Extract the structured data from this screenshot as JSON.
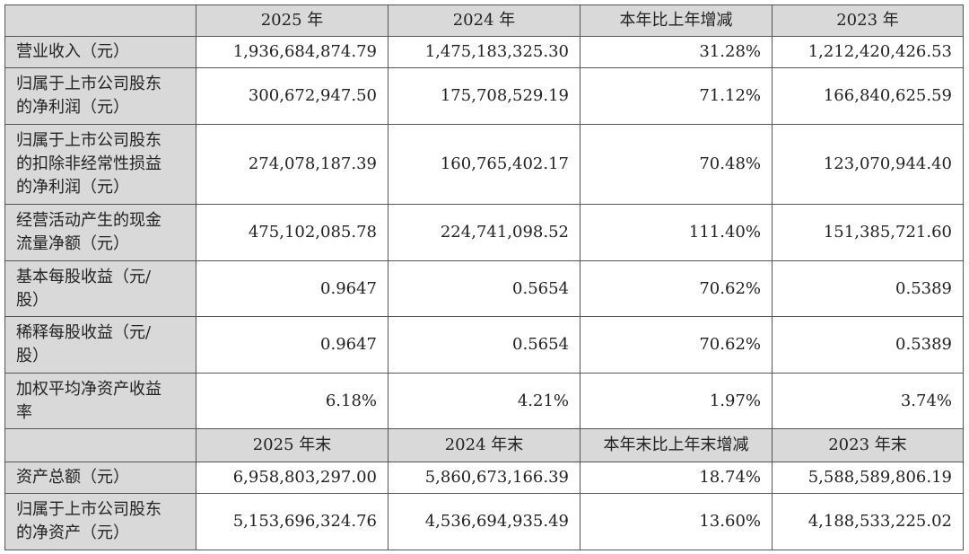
{
  "header1": [
    "",
    "2025 年",
    "2024 年",
    "本年比上年增减",
    "2023 年"
  ],
  "rows1": [
    {
      "label": [
        "营业收入（元）"
      ],
      "values": [
        "1,936,684,874.79",
        "1,475,183,325.30",
        "31.28%",
        "1,212,420,426.53"
      ]
    },
    {
      "label": [
        "归属于上市公司股东",
        "的净利润（元）"
      ],
      "values": [
        "300,672,947.50",
        "175,708,529.19",
        "71.12%",
        "166,840,625.59"
      ]
    },
    {
      "label": [
        "归属于上市公司股东",
        "的扣除非经常性损益",
        "的净利润（元）"
      ],
      "values": [
        "274,078,187.39",
        "160,765,402.17",
        "70.48%",
        "123,070,944.40"
      ]
    },
    {
      "label": [
        "经营活动产生的现金",
        "流量净额（元）"
      ],
      "values": [
        "475,102,085.78",
        "224,741,098.52",
        "111.40%",
        "151,385,721.60"
      ]
    },
    {
      "label": [
        "基本每股收益（元/",
        "股）"
      ],
      "values": [
        "0.9647",
        "0.5654",
        "70.62%",
        "0.5389"
      ]
    },
    {
      "label": [
        "稀释每股收益（元/",
        "股）"
      ],
      "values": [
        "0.9647",
        "0.5654",
        "70.62%",
        "0.5389"
      ]
    },
    {
      "label": [
        "加权平均净资产收益",
        "率"
      ],
      "values": [
        "6.18%",
        "4.21%",
        "1.97%",
        "3.74%"
      ]
    }
  ],
  "header2": [
    "",
    "2025 年末",
    "2024 年末",
    "本年末比上年末增减",
    "2023 年末"
  ],
  "rows2": [
    {
      "label": [
        "资产总额（元）"
      ],
      "values": [
        "6,958,803,297.00",
        "5,860,673,166.39",
        "18.74%",
        "5,588,589,806.19"
      ]
    },
    {
      "label": [
        "归属于上市公司股东",
        "的净资产（元）"
      ],
      "values": [
        "5,153,696,324.76",
        "4,536,694,935.49",
        "13.60%",
        "4,188,533,225.02"
      ]
    }
  ],
  "colors": {
    "header_bg": "#d9d9d9",
    "border": "#555555"
  }
}
